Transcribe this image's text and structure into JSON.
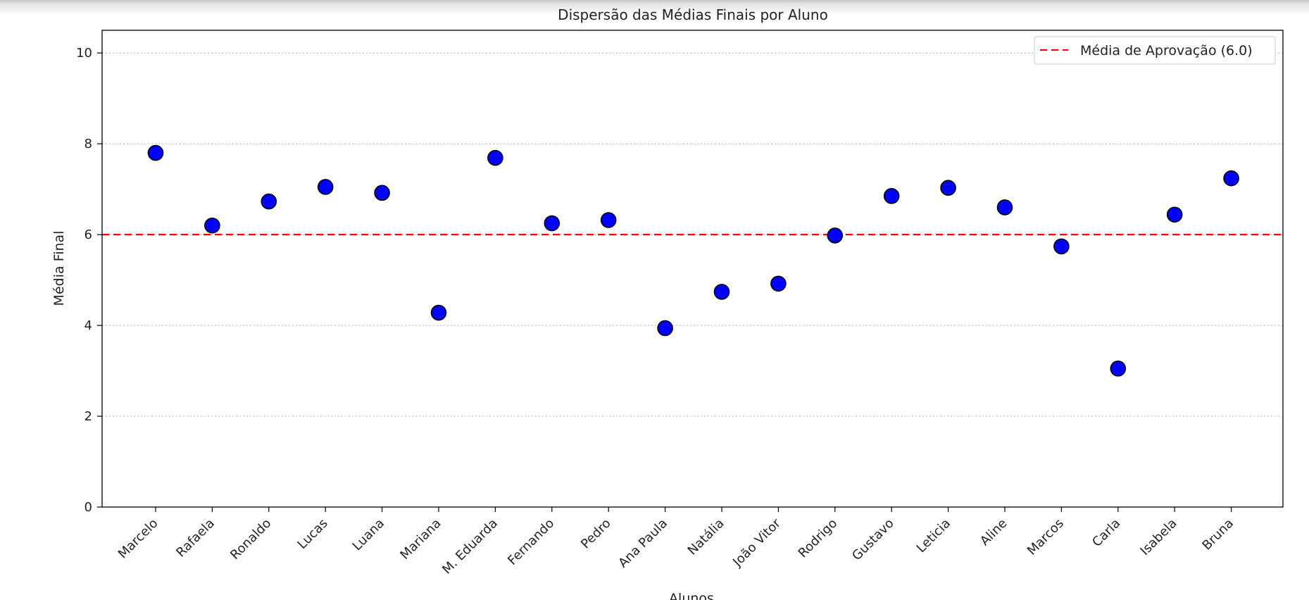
{
  "chart_data": {
    "type": "scatter",
    "title": "Dispersão das Médias Finais por Aluno",
    "xlabel": "Alunos",
    "ylabel": "Média Final",
    "ylim": [
      0,
      10.5
    ],
    "yticks": [
      0,
      2,
      4,
      6,
      8,
      10
    ],
    "grid": "y-dotted",
    "legend_position": "top-right",
    "categories": [
      "Marcelo",
      "Rafaela",
      "Ronaldo",
      "Lucas",
      "Luana",
      "Mariana",
      "M. Eduarda",
      "Fernando",
      "Pedro",
      "Ana Paula",
      "Natália",
      "João Vitor",
      "Rodrigo",
      "Gustavo",
      "Leticia",
      "Aline",
      "Marcos",
      "Carla",
      "Isabela",
      "Bruna"
    ],
    "values": [
      7.8,
      6.2,
      6.73,
      7.05,
      6.92,
      4.28,
      7.69,
      6.25,
      6.32,
      3.94,
      4.74,
      4.92,
      5.98,
      6.85,
      7.03,
      6.6,
      5.74,
      3.05,
      6.44,
      7.24
    ],
    "marker_color": "#0000ff",
    "marker_edge_color": "#000000",
    "reference_line": {
      "value": 6.0,
      "label": "Média de Aprovação (6.0)",
      "color": "#ff0000",
      "style": "dashed"
    }
  }
}
